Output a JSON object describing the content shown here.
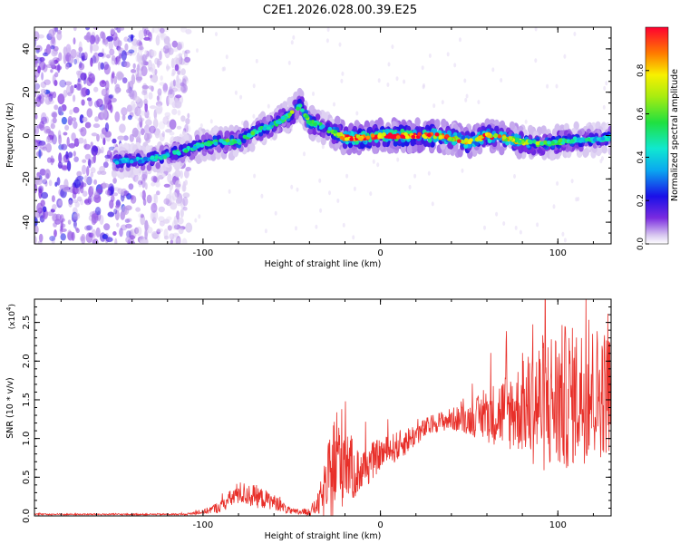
{
  "title": "C2E1.2026.028.00.39.E25",
  "chart_data": [
    {
      "type": "heatmap",
      "xlabel": "Height of straight line (km)",
      "ylabel": "Frequency (Hz)",
      "xlim": [
        -195,
        130
      ],
      "ylim": [
        -50,
        50
      ],
      "xticks": [
        -100,
        0,
        100
      ],
      "yticks": [
        40,
        20,
        0,
        -20,
        -40
      ],
      "colorbar": {
        "label": "Normalized spectral amplitude",
        "range": [
          0,
          1
        ],
        "ticks": [
          "0.0",
          "0.2",
          "0.4",
          "0.6",
          "0.8"
        ]
      },
      "ridge": {
        "description_values": "approximate frequency of the spectral ridge vs height",
        "x": [
          -150,
          -130,
          -110,
          -100,
          -90,
          -80,
          -70,
          -60,
          -50,
          -45,
          -40,
          -35,
          -30,
          -20,
          -10,
          0,
          10,
          20,
          30,
          40,
          50,
          60,
          70,
          80,
          90,
          100,
          110,
          120,
          130
        ],
        "y": [
          -12,
          -11,
          -7,
          -4,
          -3,
          -3,
          2,
          5,
          10,
          14,
          6,
          5,
          3,
          -1,
          -1,
          0,
          0,
          0,
          0,
          -1,
          -3,
          0,
          -1,
          -3,
          -4,
          -3,
          -2,
          -2,
          -1
        ],
        "amplitude": [
          0.35,
          0.4,
          0.45,
          0.5,
          0.5,
          0.55,
          0.5,
          0.45,
          0.6,
          0.55,
          0.6,
          0.5,
          0.5,
          0.9,
          1.0,
          0.95,
          1.0,
          1.0,
          0.9,
          0.8,
          0.85,
          0.9,
          0.8,
          0.65,
          0.6,
          0.55,
          0.5,
          0.45,
          0.4
        ]
      },
      "noise_region": [
        -195,
        -108
      ]
    },
    {
      "type": "line",
      "xlabel": "Height of straight line (km)",
      "ylabel": "SNR (10 * v/v)",
      "multiplier": "(x10",
      "multiplier_exp": "4",
      "multiplier_close": ")",
      "xlim": [
        -195,
        130
      ],
      "ylim": [
        0,
        2.8
      ],
      "xticks": [
        -100,
        0,
        100
      ],
      "yticks": [
        "0.0",
        "0.5",
        "1.0",
        "1.5",
        "2.0",
        "2.5"
      ],
      "color": "#e8302a",
      "envelope": {
        "x": [
          -195,
          -110,
          -100,
          -90,
          -80,
          -70,
          -60,
          -50,
          -40,
          -35,
          -30,
          -25,
          -20,
          -15,
          -10,
          0,
          10,
          20,
          30,
          40,
          50,
          60,
          70,
          80,
          90,
          100,
          110,
          120,
          130
        ],
        "y": [
          0.02,
          0.02,
          0.05,
          0.12,
          0.3,
          0.25,
          0.18,
          0.05,
          0.05,
          0.15,
          0.4,
          0.7,
          0.8,
          0.55,
          0.6,
          0.8,
          0.9,
          1.05,
          1.2,
          1.25,
          1.25,
          1.3,
          1.35,
          1.4,
          1.45,
          1.5,
          1.55,
          1.6,
          1.6
        ],
        "spread": [
          0.01,
          0.01,
          0.03,
          0.08,
          0.15,
          0.15,
          0.1,
          0.04,
          0.05,
          0.15,
          0.45,
          0.8,
          0.6,
          0.35,
          0.3,
          0.2,
          0.2,
          0.15,
          0.12,
          0.15,
          0.2,
          0.35,
          0.5,
          0.6,
          0.9,
          1.0,
          0.9,
          0.9,
          0.8
        ]
      }
    }
  ]
}
